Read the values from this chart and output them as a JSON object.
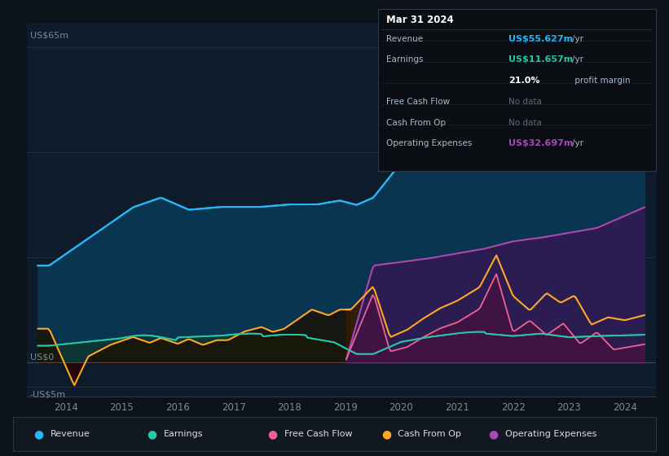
{
  "bg_color": "#0c1219",
  "plot_bg_color": "#0d1b2a",
  "revenue_color": "#29b6f6",
  "earnings_color": "#26c6a8",
  "fcf_color": "#f06292",
  "cashop_color": "#ffa726",
  "opex_color": "#ab47bc",
  "revenue_fill": "#0a3550",
  "earnings_fill": "#0d3530",
  "cashop_fill": "#2a1800",
  "opex_fill": "#3b1f5e",
  "fcf_fill": "#3a0025",
  "ylim": [
    -7,
    70
  ],
  "xlim_start": 2013.3,
  "xlim_end": 2024.55,
  "xticks": [
    2014,
    2015,
    2016,
    2017,
    2018,
    2019,
    2020,
    2021,
    2022,
    2023,
    2024
  ],
  "ylabel_top": "US$65m",
  "ylabel_zero": "US$0",
  "ylabel_neg": "-US$5m",
  "grid_color": "#1e2e3e",
  "zero_line_color": "#3a4a5a",
  "tick_color": "#7a8a9a",
  "tooltip_bg": "#0a0d12",
  "tooltip_border": "#2a3a4a",
  "legend_items": [
    {
      "label": "Revenue",
      "color": "#29b6f6"
    },
    {
      "label": "Earnings",
      "color": "#26c6a8"
    },
    {
      "label": "Free Cash Flow",
      "color": "#f06292"
    },
    {
      "label": "Cash From Op",
      "color": "#ffa726"
    },
    {
      "label": "Operating Expenses",
      "color": "#ab47bc"
    }
  ]
}
